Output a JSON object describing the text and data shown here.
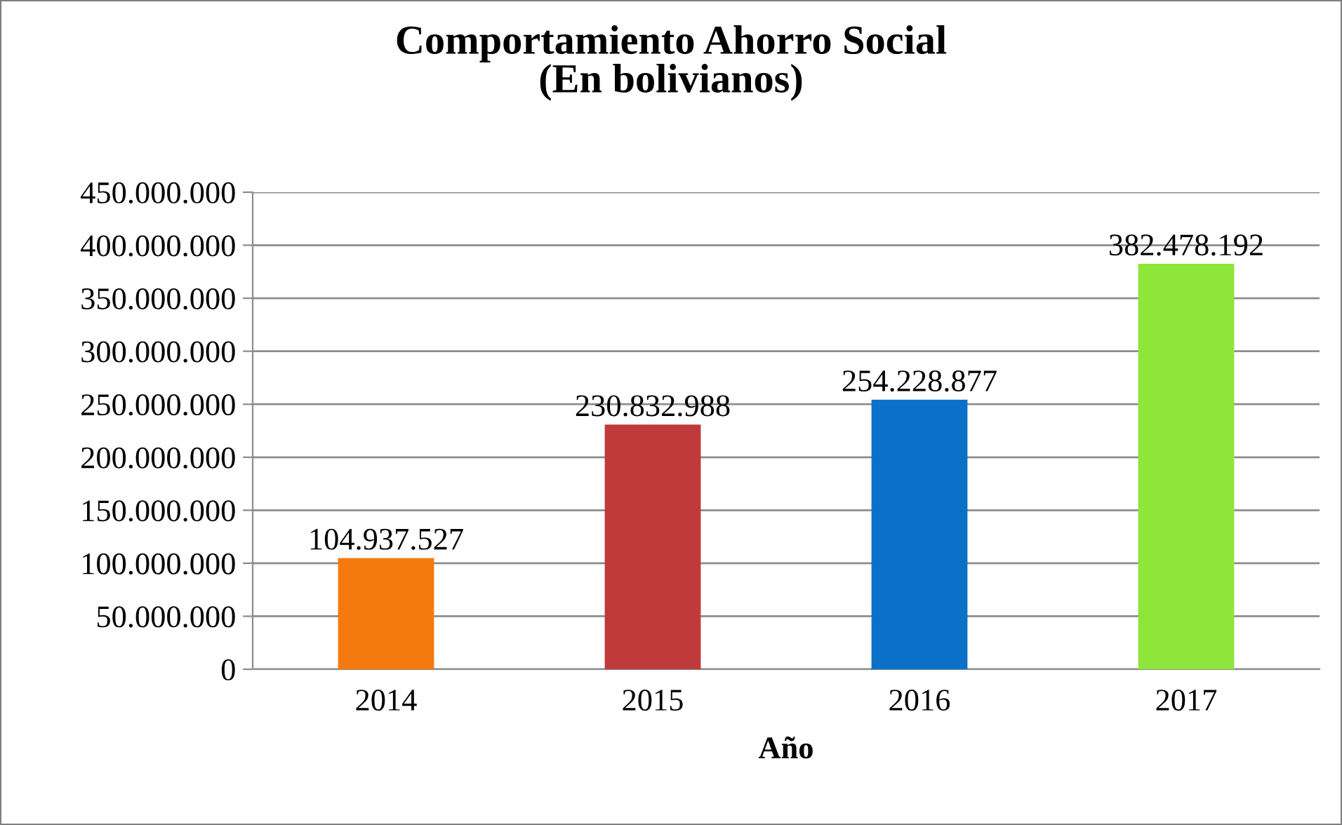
{
  "chart_data": {
    "type": "bar",
    "title": "Comportamiento Ahorro Social\n(En bolivianos)",
    "xlabel": "Año",
    "categories": [
      "2014",
      "2015",
      "2016",
      "2017"
    ],
    "values": [
      104937527,
      230832988,
      254228877,
      382478192
    ],
    "value_labels": [
      "104.937.527",
      "230.832.988",
      "254.228.877",
      "382.478.192"
    ],
    "colors": [
      "#f47a10",
      "#c0393b",
      "#0a70c8",
      "#8ee63a"
    ],
    "ylim": [
      0,
      450000000
    ],
    "yticks": [
      {
        "value": 0,
        "label": "0"
      },
      {
        "value": 50000000,
        "label": "50.000.000"
      },
      {
        "value": 100000000,
        "label": "100.000.000"
      },
      {
        "value": 150000000,
        "label": "150.000.000"
      },
      {
        "value": 200000000,
        "label": "200.000.000"
      },
      {
        "value": 250000000,
        "label": "250.000.000"
      },
      {
        "value": 300000000,
        "label": "300.000.000"
      },
      {
        "value": 350000000,
        "label": "350.000.000"
      },
      {
        "value": 400000000,
        "label": "400.000.000"
      },
      {
        "value": 450000000,
        "label": "450.000.000"
      }
    ],
    "grid": "y",
    "legend": false
  }
}
